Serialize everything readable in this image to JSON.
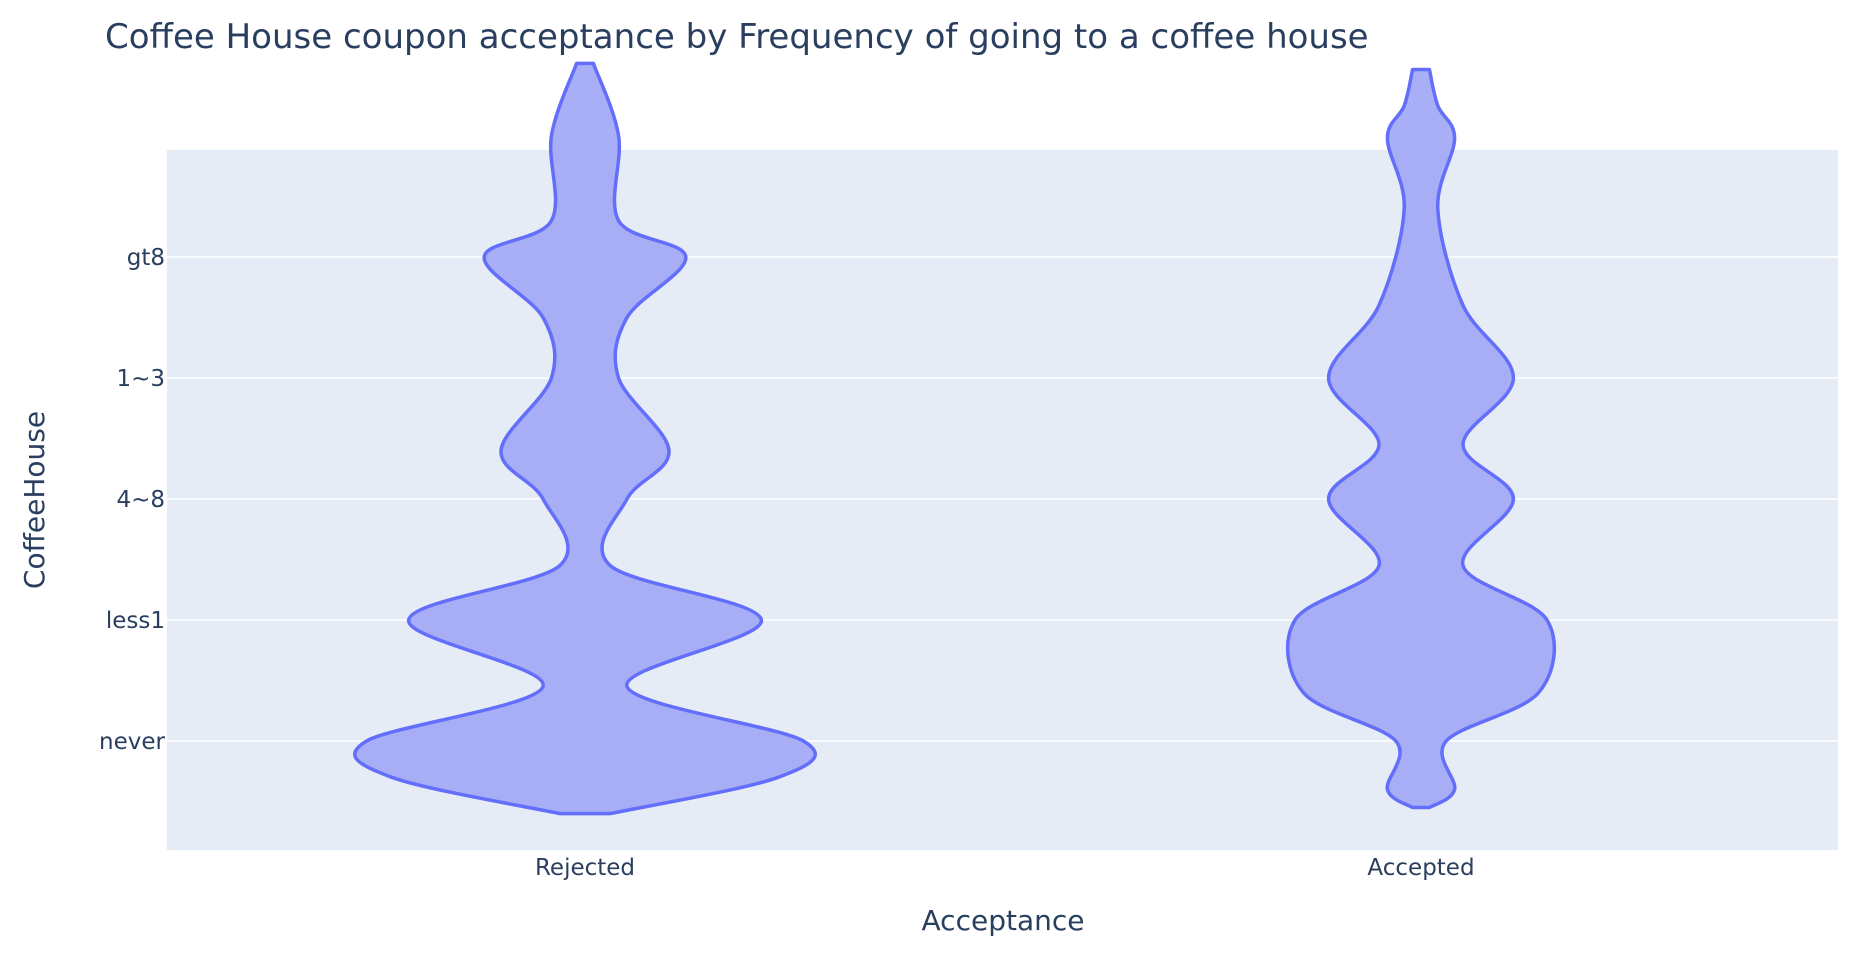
{
  "chart_data": {
    "type": "violin",
    "title": "Coffee House coupon acceptance by Frequency of going to a coffee house",
    "xlabel": "Acceptance",
    "ylabel": "CoffeeHouse",
    "categories": [
      "Rejected",
      "Accepted"
    ],
    "y_categories": [
      "never",
      "less1",
      "4~8",
      "1~3",
      "gt8"
    ],
    "series": [
      {
        "category": "Rejected",
        "density_half_width": [
          0.03,
          0.23,
          0.26,
          0.05,
          0.21,
          0.03,
          0.05,
          0.1,
          0.04,
          0.05,
          0.12,
          0.04,
          0.04,
          0.01
        ],
        "density_positions": [
          -0.6,
          -0.3,
          0,
          0.45,
          1,
          1.45,
          2,
          2.4,
          3,
          3.5,
          4,
          4.3,
          5.0,
          5.6
        ]
      },
      {
        "category": "Accepted",
        "density_half_width": [
          0.01,
          0.04,
          0.03,
          0.14,
          0.15,
          0.05,
          0.11,
          0.05,
          0.11,
          0.05,
          0.02,
          0.04,
          0.02,
          0.01
        ],
        "density_positions": [
          -0.55,
          -0.4,
          0,
          0.4,
          1,
          1.45,
          2,
          2.45,
          3,
          3.6,
          4.4,
          4.98,
          5.25,
          5.55
        ]
      }
    ],
    "grid": true,
    "legend": "none",
    "colors": {
      "fill": "#a3abf5",
      "line": "#636efa",
      "plot_bg": "#e5ecf6",
      "grid": "#ffffff",
      "text": "#2a3f5f"
    }
  }
}
